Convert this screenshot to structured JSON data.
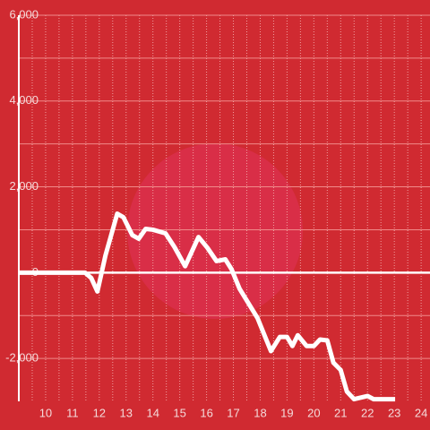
{
  "chart_data": {
    "type": "line",
    "x": [
      9,
      11.47,
      11.7,
      11.93,
      12.23,
      12.67,
      12.9,
      13.23,
      13.47,
      13.73,
      14.0,
      14.47,
      14.8,
      15.2,
      15.7,
      16.03,
      16.37,
      16.7,
      16.93,
      17.23,
      17.9,
      18.4,
      18.73,
      19.0,
      19.2,
      19.4,
      19.73,
      20.0,
      20.23,
      20.5,
      20.73,
      21.0,
      21.23,
      21.5,
      22.0,
      22.23,
      23.03
    ],
    "series": [
      {
        "color": "#ffffff",
        "values": [
          0,
          0,
          -125,
          -440,
          400,
          1375,
          1290,
          875,
          790,
          1020,
          1000,
          915,
          600,
          150,
          830,
          580,
          270,
          310,
          80,
          -375,
          -1060,
          -1830,
          -1500,
          -1500,
          -1710,
          -1460,
          -1710,
          -1710,
          -1560,
          -1580,
          -2100,
          -2270,
          -2770,
          -2950,
          -2875,
          -2950,
          -2950
        ]
      }
    ],
    "xlim": [
      9,
      24.33
    ],
    "ylim": [
      -3000,
      6000
    ],
    "xticks": [
      10,
      11,
      12,
      13,
      14,
      15,
      16,
      17,
      18,
      19,
      20,
      21,
      22,
      23,
      24
    ],
    "x_minor_ticks": [
      9.5,
      10.5,
      11.5,
      12.5,
      13.5,
      14.5,
      15.5,
      16.5,
      17.5,
      18.5,
      19.5,
      20.5,
      21.5,
      22.5,
      23.5
    ],
    "yticks": [
      {
        "value": -2000,
        "label": "-2,000"
      },
      0,
      {
        "value": 2000,
        "label": "2,000"
      },
      {
        "value": 4000,
        "label": "4,000"
      },
      {
        "value": 6000,
        "label": "6,000"
      }
    ],
    "y_minor_ticks": [
      -1000,
      1000,
      3000,
      5000
    ],
    "grid": true
  }
}
